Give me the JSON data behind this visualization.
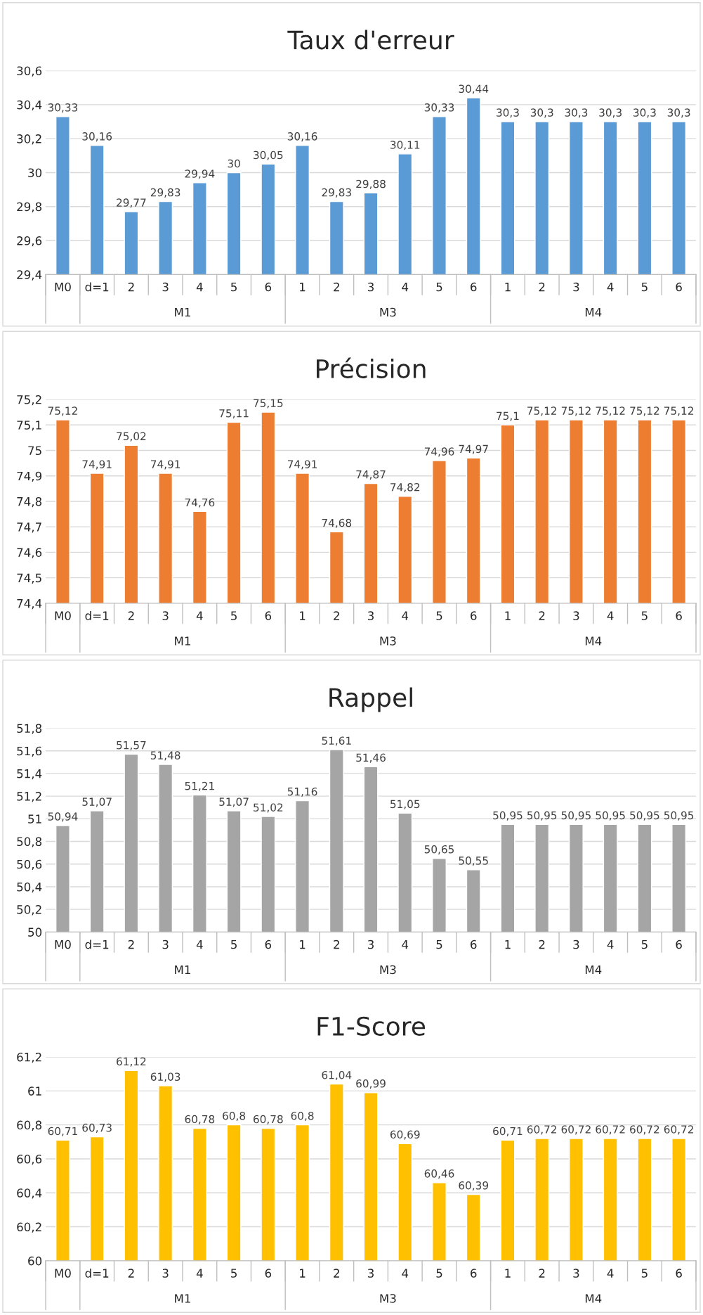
{
  "chart_data": [
    {
      "type": "bar",
      "title": "Taux d'erreur",
      "categories": [
        "M0",
        "d=1",
        "2",
        "3",
        "4",
        "5",
        "6",
        "1",
        "2",
        "3",
        "4",
        "5",
        "6",
        "1",
        "2",
        "3",
        "4",
        "5",
        "6"
      ],
      "values": [
        30.33,
        30.16,
        29.77,
        29.83,
        29.94,
        30,
        30.05,
        30.16,
        29.83,
        29.88,
        30.11,
        30.33,
        30.44,
        30.3,
        30.3,
        30.3,
        30.3,
        30.3,
        30.3
      ],
      "value_labels": [
        "30,33",
        "30,16",
        "29,77",
        "29,83",
        "29,94",
        "30",
        "30,05",
        "30,16",
        "29,83",
        "29,88",
        "30,11",
        "30,33",
        "30,44",
        "30,3",
        "30,3",
        "30,3",
        "30,3",
        "30,3",
        "30,3"
      ],
      "color": "#5b9bd5",
      "ylim": [
        29.4,
        30.6
      ],
      "yticks": [
        {
          "value": 29.4,
          "label": "29,4"
        },
        {
          "value": 29.6,
          "label": "29,6"
        },
        {
          "value": 29.8,
          "label": "29,8"
        },
        30,
        {
          "value": 30.2,
          "label": "30,2"
        },
        {
          "value": 30.4,
          "label": "30,4"
        },
        {
          "value": 30.6,
          "label": "30,6"
        }
      ],
      "grid": "y",
      "annotations": [
        "M1",
        "M3",
        "M4"
      ]
    },
    {
      "type": "bar",
      "title": "Précision",
      "categories": [
        "M0",
        "d=1",
        "2",
        "3",
        "4",
        "5",
        "6",
        "1",
        "2",
        "3",
        "4",
        "5",
        "6",
        "1",
        "2",
        "3",
        "4",
        "5",
        "6"
      ],
      "values": [
        75.12,
        74.91,
        75.02,
        74.91,
        74.76,
        75.11,
        75.15,
        74.91,
        74.68,
        74.87,
        74.82,
        74.96,
        74.97,
        75.1,
        75.12,
        75.12,
        75.12,
        75.12,
        75.12
      ],
      "value_labels": [
        "75,12",
        "74,91",
        "75,02",
        "74,91",
        "74,76",
        "75,11",
        "75,15",
        "74,91",
        "74,68",
        "74,87",
        "74,82",
        "74,96",
        "74,97",
        "75,1",
        "75,12",
        "75,12",
        "75,12",
        "75,12",
        "75,12"
      ],
      "color": "#ed7d31",
      "ylim": [
        74.4,
        75.2
      ],
      "yticks": [
        {
          "value": 74.4,
          "label": "74,4"
        },
        {
          "value": 74.5,
          "label": "74,5"
        },
        {
          "value": 74.6,
          "label": "74,6"
        },
        {
          "value": 74.7,
          "label": "74,7"
        },
        {
          "value": 74.8,
          "label": "74,8"
        },
        {
          "value": 74.9,
          "label": "74,9"
        },
        75,
        {
          "value": 75.1,
          "label": "75,1"
        },
        {
          "value": 75.2,
          "label": "75,2"
        }
      ],
      "grid": "y",
      "annotations": [
        "M1",
        "M3",
        "M4"
      ]
    },
    {
      "type": "bar",
      "title": "Rappel",
      "categories": [
        "M0",
        "d=1",
        "2",
        "3",
        "4",
        "5",
        "6",
        "1",
        "2",
        "3",
        "4",
        "5",
        "6",
        "1",
        "2",
        "3",
        "4",
        "5",
        "6"
      ],
      "values": [
        50.94,
        51.07,
        51.57,
        51.48,
        51.21,
        51.07,
        51.02,
        51.16,
        51.61,
        51.46,
        51.05,
        50.65,
        50.55,
        50.95,
        50.95,
        50.95,
        50.95,
        50.95,
        50.95
      ],
      "value_labels": [
        "50,94",
        "51,07",
        "51,57",
        "51,48",
        "51,21",
        "51,07",
        "51,02",
        "51,16",
        "51,61",
        "51,46",
        "51,05",
        "50,65",
        "50,55",
        "50,95",
        "50,95",
        "50,95",
        "50,95",
        "50,95",
        "50,95"
      ],
      "color": "#a5a5a5",
      "ylim": [
        50,
        51.8
      ],
      "yticks": [
        50,
        {
          "value": 50.2,
          "label": "50,2"
        },
        {
          "value": 50.4,
          "label": "50,4"
        },
        {
          "value": 50.6,
          "label": "50,6"
        },
        {
          "value": 50.8,
          "label": "50,8"
        },
        51,
        {
          "value": 51.2,
          "label": "51,2"
        },
        {
          "value": 51.4,
          "label": "51,4"
        },
        {
          "value": 51.6,
          "label": "51,6"
        },
        {
          "value": 51.8,
          "label": "51,8"
        }
      ],
      "grid": "y",
      "annotations": [
        "M1",
        "M3",
        "M4"
      ]
    },
    {
      "type": "bar",
      "title": "F1-Score",
      "categories": [
        "M0",
        "d=1",
        "2",
        "3",
        "4",
        "5",
        "6",
        "1",
        "2",
        "3",
        "4",
        "5",
        "6",
        "1",
        "2",
        "3",
        "4",
        "5",
        "6"
      ],
      "values": [
        60.71,
        60.73,
        61.12,
        61.03,
        60.78,
        60.8,
        60.78,
        60.8,
        61.04,
        60.99,
        60.69,
        60.46,
        60.39,
        60.71,
        60.72,
        60.72,
        60.72,
        60.72,
        60.72
      ],
      "value_labels": [
        "60,71",
        "60,73",
        "61,12",
        "61,03",
        "60,78",
        "60,8",
        "60,78",
        "60,8",
        "61,04",
        "60,99",
        "60,69",
        "60,46",
        "60,39",
        "60,71",
        "60,72",
        "60,72",
        "60,72",
        "60,72",
        "60,72"
      ],
      "color": "#ffc000",
      "ylim": [
        60,
        61.2
      ],
      "yticks": [
        60,
        {
          "value": 60.2,
          "label": "60,2"
        },
        {
          "value": 60.4,
          "label": "60,4"
        },
        {
          "value": 60.6,
          "label": "60,6"
        },
        {
          "value": 60.8,
          "label": "60,8"
        },
        61,
        {
          "value": 61.2,
          "label": "61,2"
        }
      ],
      "grid": "y",
      "annotations": [
        "M1",
        "M3",
        "M4"
      ]
    }
  ]
}
